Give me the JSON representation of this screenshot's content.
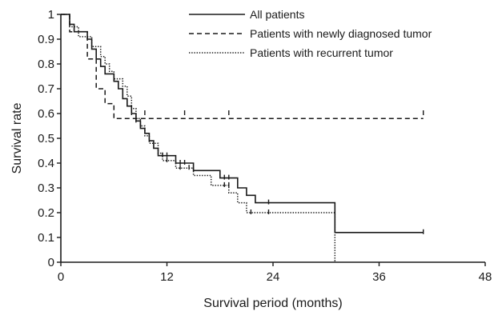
{
  "chart_data": {
    "type": "line",
    "title": "",
    "xlabel": "Survival period (months)",
    "ylabel": "Survival rate",
    "xlim": [
      0,
      48
    ],
    "ylim": [
      0,
      1
    ],
    "x_ticks": [
      0,
      12,
      24,
      36,
      48
    ],
    "y_ticks": [
      0,
      0.1,
      0.2,
      0.3,
      0.4,
      0.5,
      0.6,
      0.7,
      0.8,
      0.9,
      1
    ],
    "y_tick_labels": [
      "0",
      "0.1",
      "0.2",
      "0.3",
      "0.4",
      "0.5",
      "0.6",
      "0.7",
      "0.8",
      "0.9",
      "1"
    ],
    "grid": false,
    "legend_position": "top-right",
    "series": [
      {
        "name": "All patients",
        "style": "solid",
        "steps": [
          [
            0,
            1
          ],
          [
            1,
            0.96
          ],
          [
            1.5,
            0.93
          ],
          [
            3,
            0.9
          ],
          [
            3.5,
            0.86
          ],
          [
            4,
            0.82
          ],
          [
            4.5,
            0.79
          ],
          [
            5,
            0.76
          ],
          [
            6,
            0.73
          ],
          [
            6.5,
            0.7
          ],
          [
            7,
            0.66
          ],
          [
            7.5,
            0.63
          ],
          [
            8,
            0.6
          ],
          [
            8.5,
            0.57
          ],
          [
            9,
            0.54
          ],
          [
            9.5,
            0.52
          ],
          [
            10,
            0.49
          ],
          [
            10.5,
            0.46
          ],
          [
            11,
            0.43
          ],
          [
            13,
            0.4
          ],
          [
            15,
            0.37
          ],
          [
            18,
            0.34
          ],
          [
            20,
            0.3
          ],
          [
            21,
            0.27
          ],
          [
            22,
            0.24
          ],
          [
            31,
            0.12
          ],
          [
            41,
            0.12
          ]
        ],
        "censored": [
          [
            8.5,
            0.57
          ],
          [
            9,
            0.55
          ],
          [
            11.5,
            0.43
          ],
          [
            12,
            0.43
          ],
          [
            13.5,
            0.4
          ],
          [
            14,
            0.4
          ],
          [
            18.5,
            0.34
          ],
          [
            19,
            0.34
          ],
          [
            23.5,
            0.24
          ],
          [
            41,
            0.12
          ]
        ]
      },
      {
        "name": "Patients with newly diagnosed tumor",
        "style": "dashed",
        "steps": [
          [
            0,
            1
          ],
          [
            1,
            0.93
          ],
          [
            3,
            0.82
          ],
          [
            4,
            0.7
          ],
          [
            5,
            0.64
          ],
          [
            6,
            0.58
          ],
          [
            41,
            0.58
          ]
        ],
        "censored": [
          [
            8,
            0.6
          ],
          [
            9.5,
            0.6
          ],
          [
            14,
            0.6
          ],
          [
            19,
            0.6
          ],
          [
            41,
            0.6
          ]
        ]
      },
      {
        "name": "Patients with recurrent tumor",
        "style": "dotted",
        "steps": [
          [
            0,
            1
          ],
          [
            1,
            0.95
          ],
          [
            2,
            0.91
          ],
          [
            3.5,
            0.87
          ],
          [
            4.5,
            0.83
          ],
          [
            5,
            0.8
          ],
          [
            5.5,
            0.77
          ],
          [
            6,
            0.74
          ],
          [
            7,
            0.71
          ],
          [
            7.5,
            0.67
          ],
          [
            8,
            0.62
          ],
          [
            8.5,
            0.58
          ],
          [
            9,
            0.55
          ],
          [
            9.5,
            0.51
          ],
          [
            10,
            0.48
          ],
          [
            11,
            0.44
          ],
          [
            11.5,
            0.41
          ],
          [
            13,
            0.38
          ],
          [
            15,
            0.35
          ],
          [
            17,
            0.31
          ],
          [
            19,
            0.28
          ],
          [
            20,
            0.24
          ],
          [
            21,
            0.2
          ],
          [
            31,
            0.0
          ]
        ],
        "censored": [
          [
            12,
            0.41
          ],
          [
            13.5,
            0.38
          ],
          [
            14.5,
            0.38
          ],
          [
            18.5,
            0.31
          ],
          [
            19,
            0.31
          ],
          [
            21.5,
            0.2
          ],
          [
            23.5,
            0.2
          ]
        ]
      }
    ]
  }
}
